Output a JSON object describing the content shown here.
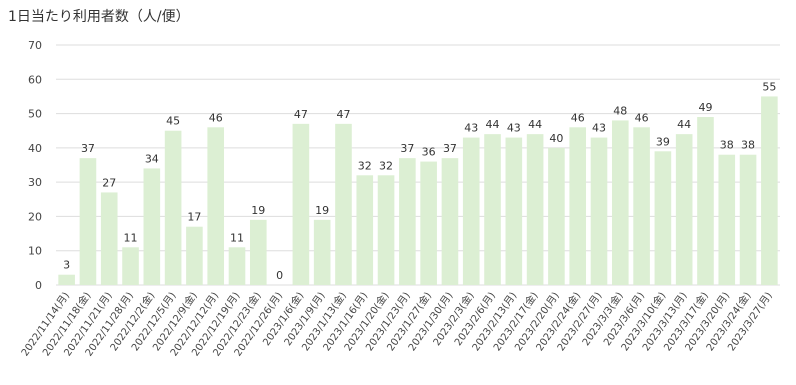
{
  "chart_data": {
    "type": "bar",
    "title": "1日当たり利用者数（人/便）",
    "xlabel": "",
    "ylabel": "",
    "ylim": [
      0,
      70
    ],
    "yticks": [
      0,
      10,
      20,
      30,
      40,
      50,
      60,
      70
    ],
    "grid": true,
    "legend": "none",
    "bar_color": "#dcefd3",
    "grid_color": "#dddddd",
    "categories": [
      "2022/11/14(月)",
      "2022/11/18(金)",
      "2022/11/21(月)",
      "2022/11/28(月)",
      "2022/12/2(金)",
      "2022/12/5(月)",
      "2022/12/9(金)",
      "2022/12/12(月)",
      "2022/12/19(月)",
      "2022/12/23(金)",
      "2022/12/26(月)",
      "2023/1/6(金)",
      "2023/1/9(月)",
      "2023/1/13(金)",
      "2023/1/16(月)",
      "2023/1/20(金)",
      "2023/1/23(月)",
      "2023/1/27(金)",
      "2023/1/30(月)",
      "2023/2/3(金)",
      "2023/2/6(月)",
      "2023/2/13(月)",
      "2023/2/17(金)",
      "2023/2/20(月)",
      "2023/2/24(金)",
      "2023/2/27(月)",
      "2023/3/3(金)",
      "2023/3/6(月)",
      "2023/3/10(金)",
      "2023/3/13(月)",
      "2023/3/17(金)",
      "2023/3/20(月)",
      "2023/3/24(金)",
      "2023/3/27(月)"
    ],
    "values": [
      3,
      37,
      27,
      11,
      34,
      45,
      17,
      46,
      11,
      19,
      0,
      47,
      19,
      47,
      32,
      32,
      37,
      36,
      37,
      43,
      44,
      43,
      44,
      40,
      46,
      43,
      48,
      46,
      39,
      44,
      49,
      38,
      38,
      55
    ]
  }
}
